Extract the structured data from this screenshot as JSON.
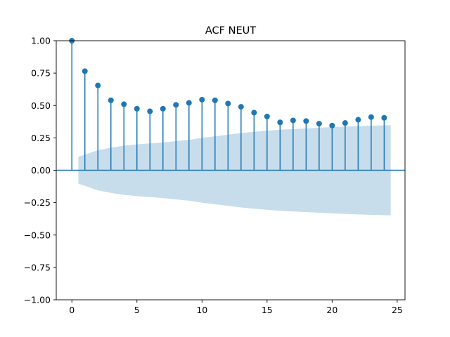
{
  "chart_data": {
    "type": "stem",
    "title": "ACF NEUT",
    "xlabel": "",
    "ylabel": "",
    "xlim": [
      -1.2,
      25.6
    ],
    "ylim": [
      -1.0,
      1.0
    ],
    "xticks": [
      0,
      5,
      10,
      15,
      20,
      25
    ],
    "xtick_labels": [
      "0",
      "5",
      "10",
      "15",
      "20",
      "25"
    ],
    "yticks": [
      1.0,
      0.75,
      0.5,
      0.25,
      0.0,
      -0.25,
      -0.5,
      -0.75,
      -1.0
    ],
    "ytick_labels": [
      "1.00",
      "0.75",
      "0.50",
      "0.25",
      "0.00",
      "−0.25",
      "−0.50",
      "−0.75",
      "−1.00"
    ],
    "lags": [
      0,
      1,
      2,
      3,
      4,
      5,
      6,
      7,
      8,
      9,
      10,
      11,
      12,
      13,
      14,
      15,
      16,
      17,
      18,
      19,
      20,
      21,
      22,
      23,
      24
    ],
    "acf": [
      1.0,
      0.765,
      0.655,
      0.54,
      0.51,
      0.475,
      0.455,
      0.475,
      0.505,
      0.52,
      0.545,
      0.54,
      0.515,
      0.49,
      0.445,
      0.415,
      0.37,
      0.385,
      0.38,
      0.36,
      0.345,
      0.365,
      0.39,
      0.41,
      0.405
    ],
    "confidence_band": {
      "x": [
        0.5,
        1,
        2,
        3,
        4,
        5,
        6,
        7,
        8,
        9,
        10,
        11,
        12,
        13,
        14,
        15,
        16,
        17,
        18,
        19,
        20,
        21,
        22,
        23,
        24,
        24.5
      ],
      "upper": [
        0.105,
        0.12,
        0.155,
        0.175,
        0.19,
        0.2,
        0.207,
        0.215,
        0.225,
        0.235,
        0.25,
        0.262,
        0.275,
        0.287,
        0.297,
        0.305,
        0.313,
        0.318,
        0.323,
        0.328,
        0.333,
        0.337,
        0.341,
        0.344,
        0.347,
        0.348
      ],
      "lower": [
        -0.105,
        -0.12,
        -0.155,
        -0.175,
        -0.19,
        -0.2,
        -0.207,
        -0.215,
        -0.225,
        -0.235,
        -0.25,
        -0.262,
        -0.275,
        -0.287,
        -0.297,
        -0.305,
        -0.313,
        -0.318,
        -0.323,
        -0.328,
        -0.333,
        -0.337,
        -0.341,
        -0.344,
        -0.347,
        -0.348
      ]
    },
    "colors": {
      "stem": "#1f77b4",
      "marker": "#1f77b4",
      "band": "#1f77b4",
      "band_opacity": 0.25,
      "axis": "#000000"
    },
    "grid": false,
    "legend": "none"
  }
}
